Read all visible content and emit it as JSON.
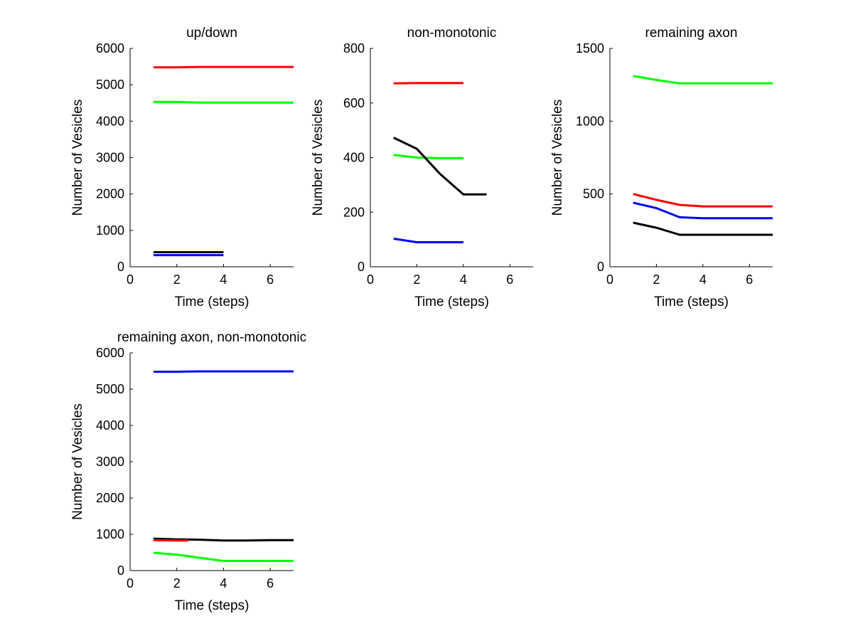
{
  "chart_data": [
    {
      "type": "line",
      "title": "up/down",
      "xlabel": "Time (steps)",
      "ylabel": "Number of Vesicles",
      "xlim": [
        0,
        7
      ],
      "ylim": [
        0,
        6000
      ],
      "xticks": [
        0,
        2,
        4,
        6
      ],
      "yticks": [
        0,
        1000,
        2000,
        3000,
        4000,
        5000,
        6000
      ],
      "grid": false,
      "series": [
        {
          "color": "#ff0000",
          "x": [
            1,
            2,
            3,
            4,
            5,
            6,
            7
          ],
          "y": [
            5480,
            5480,
            5490,
            5490,
            5490,
            5490,
            5490
          ]
        },
        {
          "color": "#00ff00",
          "x": [
            1,
            2,
            3,
            4,
            5,
            6,
            7
          ],
          "y": [
            4530,
            4530,
            4510,
            4510,
            4510,
            4510,
            4510
          ]
        },
        {
          "color": "#000000",
          "x": [
            1,
            2,
            3,
            4
          ],
          "y": [
            400,
            400,
            400,
            400
          ]
        },
        {
          "color": "#0000ff",
          "x": [
            1,
            2,
            3,
            4
          ],
          "y": [
            320,
            320,
            320,
            320
          ]
        }
      ]
    },
    {
      "type": "line",
      "title": "non-monotonic",
      "xlabel": "Time (steps)",
      "ylabel": "Number of Vesicles",
      "xlim": [
        0,
        7
      ],
      "ylim": [
        0,
        800
      ],
      "xticks": [
        0,
        2,
        4,
        6
      ],
      "yticks": [
        0,
        200,
        400,
        600,
        800
      ],
      "grid": false,
      "series": [
        {
          "color": "#ff0000",
          "x": [
            1,
            2,
            3,
            4
          ],
          "y": [
            672,
            673,
            673,
            673
          ]
        },
        {
          "color": "#00ff00",
          "x": [
            1,
            2,
            3,
            4
          ],
          "y": [
            410,
            400,
            398,
            398
          ]
        },
        {
          "color": "#000000",
          "x": [
            1,
            2,
            3,
            4,
            5
          ],
          "y": [
            473,
            432,
            340,
            265,
            265
          ]
        },
        {
          "color": "#0000ff",
          "x": [
            1,
            2,
            3,
            4
          ],
          "y": [
            103,
            90,
            90,
            90
          ]
        }
      ]
    },
    {
      "type": "line",
      "title": "remaining axon",
      "xlabel": "Time (steps)",
      "ylabel": "Number of Vesicles",
      "xlim": [
        0,
        7
      ],
      "ylim": [
        0,
        1500
      ],
      "xticks": [
        0,
        2,
        4,
        6
      ],
      "yticks": [
        0,
        500,
        1000,
        1500
      ],
      "grid": false,
      "series": [
        {
          "color": "#00ff00",
          "x": [
            1,
            2,
            3,
            4,
            5,
            6,
            7
          ],
          "y": [
            1310,
            1283,
            1260,
            1260,
            1260,
            1260,
            1260
          ]
        },
        {
          "color": "#ff0000",
          "x": [
            1,
            2,
            3,
            4,
            5,
            6,
            7
          ],
          "y": [
            500,
            460,
            425,
            415,
            415,
            415,
            415
          ]
        },
        {
          "color": "#0000ff",
          "x": [
            1,
            2,
            3,
            4,
            5,
            6,
            7
          ],
          "y": [
            440,
            403,
            340,
            333,
            333,
            333,
            333
          ]
        },
        {
          "color": "#000000",
          "x": [
            1,
            2,
            3,
            4,
            5,
            6,
            7
          ],
          "y": [
            303,
            268,
            220,
            220,
            220,
            220,
            220
          ]
        }
      ]
    },
    {
      "type": "line",
      "title": "remaining axon, non-monotonic",
      "xlabel": "Time (steps)",
      "ylabel": "Number of Vesicles",
      "xlim": [
        0,
        7
      ],
      "ylim": [
        0,
        6000
      ],
      "xticks": [
        0,
        2,
        4,
        6
      ],
      "yticks": [
        0,
        1000,
        2000,
        3000,
        4000,
        5000,
        6000
      ],
      "grid": false,
      "series": [
        {
          "color": "#0000ff",
          "x": [
            1,
            2,
            3,
            4,
            5,
            6,
            7
          ],
          "y": [
            5480,
            5480,
            5490,
            5490,
            5490,
            5490,
            5490
          ]
        },
        {
          "color": "#000000",
          "x": [
            1,
            2,
            3,
            4,
            5,
            6,
            7
          ],
          "y": [
            880,
            860,
            850,
            830,
            830,
            840,
            840
          ]
        },
        {
          "color": "#ff0000",
          "x": [
            1,
            2,
            2.5
          ],
          "y": [
            840,
            830,
            830
          ]
        },
        {
          "color": "#00ff00",
          "x": [
            1,
            2,
            3,
            4,
            5,
            6,
            7
          ],
          "y": [
            490,
            440,
            350,
            265,
            265,
            265,
            265
          ]
        }
      ]
    }
  ]
}
